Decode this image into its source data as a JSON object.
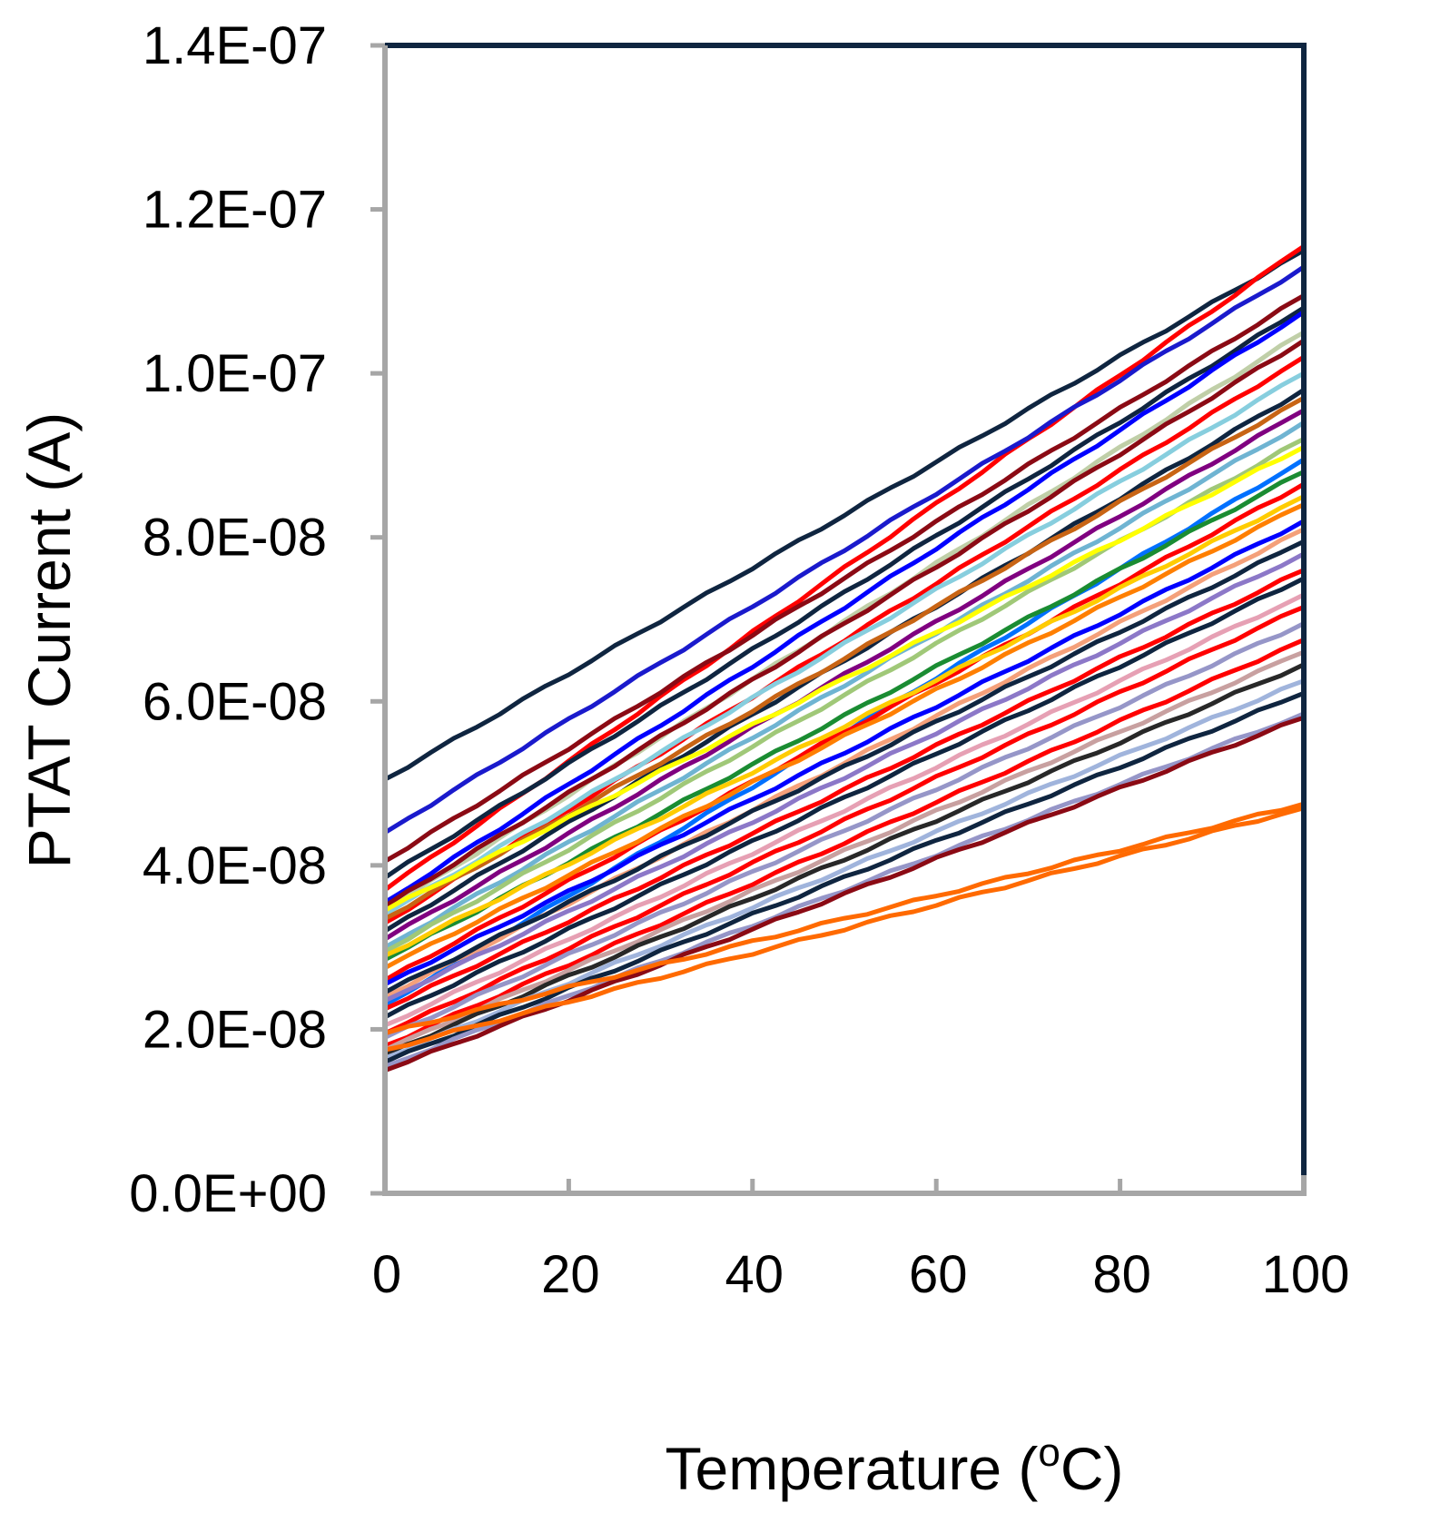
{
  "chart_data": {
    "type": "line",
    "title": "",
    "xlabel_main": "Temperature (",
    "xlabel_sup": "o",
    "xlabel_tail": "C)",
    "ylabel": "PTAT Current (A)",
    "xlim": [
      0,
      100
    ],
    "ylim": [
      0,
      1.4e-07
    ],
    "grid": false,
    "legend": "none",
    "x_ticks": [
      {
        "value": 0,
        "label": "0"
      },
      {
        "value": 20,
        "label": "20"
      },
      {
        "value": 40,
        "label": "40"
      },
      {
        "value": 60,
        "label": "60"
      },
      {
        "value": 80,
        "label": "80"
      },
      {
        "value": 100,
        "label": "100"
      }
    ],
    "y_ticks": [
      {
        "value": 0,
        "label": "0.0E+00"
      },
      {
        "value": 2e-08,
        "label": "2.0E-08"
      },
      {
        "value": 4e-08,
        "label": "4.0E-08"
      },
      {
        "value": 6e-08,
        "label": "6.0E-08"
      },
      {
        "value": 8e-08,
        "label": "8.0E-08"
      },
      {
        "value": 1e-07,
        "label": "1.0E-07"
      },
      {
        "value": 1.2e-07,
        "label": "1.2E-07"
      },
      {
        "value": 1.4e-07,
        "label": "1.4E-07"
      }
    ],
    "colors": {
      "frame": "#0f2540",
      "left_axis": "#a6a6a6",
      "bottom_axis": "#a6a6a6"
    },
    "series": [
      {
        "name": "curve-01",
        "color": "#0f2540",
        "values": [
          [
            0,
            5.05e-08
          ],
          [
            100,
            1.15e-07
          ]
        ]
      },
      {
        "name": "curve-02",
        "color": "#ff0000",
        "values": [
          [
            0,
            3.7e-08
          ],
          [
            100,
            1.155e-07
          ]
        ]
      },
      {
        "name": "curve-03",
        "color": "#1a1acc",
        "values": [
          [
            0,
            4.4e-08
          ],
          [
            100,
            1.13e-07
          ]
        ]
      },
      {
        "name": "curve-04",
        "color": "#8b0a14",
        "values": [
          [
            0,
            4.05e-08
          ],
          [
            100,
            1.095e-07
          ]
        ]
      },
      {
        "name": "curve-05",
        "color": "#0f2540",
        "values": [
          [
            0,
            3.85e-08
          ],
          [
            100,
            1.08e-07
          ]
        ]
      },
      {
        "name": "curve-06",
        "color": "#0000ff",
        "values": [
          [
            0,
            3.55e-08
          ],
          [
            100,
            1.075e-07
          ]
        ]
      },
      {
        "name": "curve-07",
        "color": "#c0cfa8",
        "values": [
          [
            0,
            3.45e-08
          ],
          [
            100,
            1.05e-07
          ]
        ]
      },
      {
        "name": "curve-08",
        "color": "#8b0a14",
        "values": [
          [
            0,
            3.5e-08
          ],
          [
            100,
            1.04e-07
          ]
        ]
      },
      {
        "name": "curve-09",
        "color": "#ff0000",
        "values": [
          [
            0,
            3.3e-08
          ],
          [
            100,
            1.02e-07
          ]
        ]
      },
      {
        "name": "curve-10",
        "color": "#87cede",
        "values": [
          [
            0,
            3.4e-08
          ],
          [
            100,
            1e-07
          ]
        ]
      },
      {
        "name": "curve-11",
        "color": "#0f2540",
        "values": [
          [
            0,
            3.2e-08
          ],
          [
            100,
            9.8e-08
          ]
        ]
      },
      {
        "name": "curve-12",
        "color": "#c86414",
        "values": [
          [
            0,
            3.35e-08
          ],
          [
            100,
            9.7e-08
          ]
        ]
      },
      {
        "name": "curve-13",
        "color": "#800080",
        "values": [
          [
            0,
            3.1e-08
          ],
          [
            100,
            9.55e-08
          ]
        ]
      },
      {
        "name": "curve-14",
        "color": "#6fb4d2",
        "values": [
          [
            0,
            3e-08
          ],
          [
            100,
            9.4e-08
          ]
        ]
      },
      {
        "name": "curve-15",
        "color": "#a0c878",
        "values": [
          [
            0,
            2.95e-08
          ],
          [
            100,
            9.2e-08
          ]
        ]
      },
      {
        "name": "curve-16",
        "color": "#ffff00",
        "values": [
          [
            0,
            3.45e-08
          ],
          [
            100,
            9.1e-08
          ]
        ]
      },
      {
        "name": "curve-17",
        "color": "#0070ff",
        "values": [
          [
            0,
            2.3e-08
          ],
          [
            100,
            8.95e-08
          ]
        ]
      },
      {
        "name": "curve-18",
        "color": "#1a8c32",
        "values": [
          [
            0,
            2.85e-08
          ],
          [
            100,
            8.8e-08
          ]
        ]
      },
      {
        "name": "curve-19",
        "color": "#ff0000",
        "values": [
          [
            0,
            2.6e-08
          ],
          [
            100,
            8.65e-08
          ]
        ]
      },
      {
        "name": "curve-20",
        "color": "#ffcc00",
        "values": [
          [
            0,
            2.9e-08
          ],
          [
            100,
            8.5e-08
          ]
        ]
      },
      {
        "name": "curve-21",
        "color": "#ff7f00",
        "values": [
          [
            0,
            2.75e-08
          ],
          [
            100,
            8.4e-08
          ]
        ]
      },
      {
        "name": "curve-22",
        "color": "#0000ff",
        "values": [
          [
            0,
            2.55e-08
          ],
          [
            100,
            8.2e-08
          ]
        ]
      },
      {
        "name": "curve-23",
        "color": "#f4a07a",
        "values": [
          [
            0,
            2.4e-08
          ],
          [
            100,
            8.1e-08
          ]
        ]
      },
      {
        "name": "curve-24",
        "color": "#0f2540",
        "values": [
          [
            0,
            2.45e-08
          ],
          [
            100,
            7.95e-08
          ]
        ]
      },
      {
        "name": "curve-25",
        "color": "#8c78c8",
        "values": [
          [
            0,
            2.35e-08
          ],
          [
            100,
            7.8e-08
          ]
        ]
      },
      {
        "name": "curve-26",
        "color": "#ff0000",
        "values": [
          [
            0,
            2.25e-08
          ],
          [
            100,
            7.6e-08
          ]
        ]
      },
      {
        "name": "curve-27",
        "color": "#0f2540",
        "values": [
          [
            0,
            2.15e-08
          ],
          [
            100,
            7.5e-08
          ]
        ]
      },
      {
        "name": "curve-28",
        "color": "#e6a0b4",
        "values": [
          [
            0,
            2.05e-08
          ],
          [
            100,
            7.3e-08
          ]
        ]
      },
      {
        "name": "curve-29",
        "color": "#ff0000",
        "values": [
          [
            0,
            1.95e-08
          ],
          [
            100,
            7.15e-08
          ]
        ]
      },
      {
        "name": "curve-30",
        "color": "#9696c8",
        "values": [
          [
            0,
            1.9e-08
          ],
          [
            100,
            6.95e-08
          ]
        ]
      },
      {
        "name": "curve-31",
        "color": "#ff0000",
        "values": [
          [
            0,
            1.8e-08
          ],
          [
            100,
            6.75e-08
          ]
        ]
      },
      {
        "name": "curve-32",
        "color": "#c8a0a0",
        "values": [
          [
            0,
            1.75e-08
          ],
          [
            100,
            6.6e-08
          ]
        ]
      },
      {
        "name": "curve-33",
        "color": "#282828",
        "values": [
          [
            0,
            1.7e-08
          ],
          [
            100,
            6.45e-08
          ]
        ]
      },
      {
        "name": "curve-34",
        "color": "#a0b4dc",
        "values": [
          [
            0,
            1.65e-08
          ],
          [
            100,
            6.25e-08
          ]
        ]
      },
      {
        "name": "curve-35",
        "color": "#0f2540",
        "values": [
          [
            0,
            1.6e-08
          ],
          [
            100,
            6.1e-08
          ]
        ]
      },
      {
        "name": "curve-36",
        "color": "#9696c8",
        "values": [
          [
            0,
            1.55e-08
          ],
          [
            100,
            5.85e-08
          ]
        ]
      },
      {
        "name": "curve-37",
        "color": "#8b0a14",
        "values": [
          [
            0,
            1.5e-08
          ],
          [
            100,
            5.8e-08
          ]
        ]
      },
      {
        "name": "curve-38",
        "color": "#ff6a00",
        "values": [
          [
            0,
            1.95e-08
          ],
          [
            100,
            4.75e-08
          ]
        ]
      },
      {
        "name": "curve-39",
        "color": "#ff6a00",
        "values": [
          [
            0,
            1.75e-08
          ],
          [
            100,
            4.7e-08
          ]
        ]
      }
    ]
  }
}
